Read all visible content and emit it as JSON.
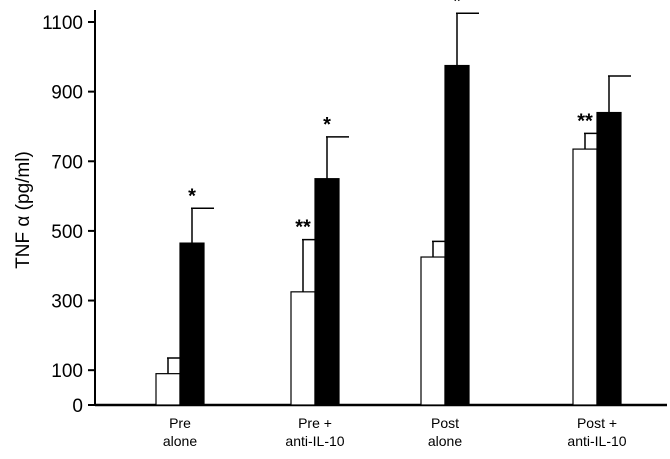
{
  "chart_data": {
    "type": "bar",
    "title": "",
    "xlabel": "",
    "ylabel": "TNF α (pg/ml)",
    "ylim": [
      0,
      1150
    ],
    "yticks": [
      0,
      100,
      300,
      500,
      700,
      900,
      1100
    ],
    "grid": false,
    "legend": "none",
    "categories": [
      [
        "Pre",
        "alone"
      ],
      [
        "Pre +",
        "anti-IL-10"
      ],
      [
        "Post",
        "alone"
      ],
      [
        "Post +",
        "anti-IL-10"
      ]
    ],
    "series": [
      {
        "color": "#ffffff",
        "values": [
          90,
          325,
          425,
          735
        ],
        "errors": [
          45,
          150,
          45,
          45
        ]
      },
      {
        "color": "#000000",
        "values": [
          465,
          650,
          975,
          840
        ],
        "errors": [
          100,
          120,
          150,
          105
        ]
      }
    ],
    "annotations": [
      {
        "category": 0,
        "series": 1,
        "text": "*"
      },
      {
        "category": 1,
        "series": 0,
        "text": "**"
      },
      {
        "category": 1,
        "series": 1,
        "text": "*"
      },
      {
        "category": 2,
        "series": 1,
        "text": "*"
      },
      {
        "category": 3,
        "series": 0,
        "text": "**"
      }
    ]
  }
}
